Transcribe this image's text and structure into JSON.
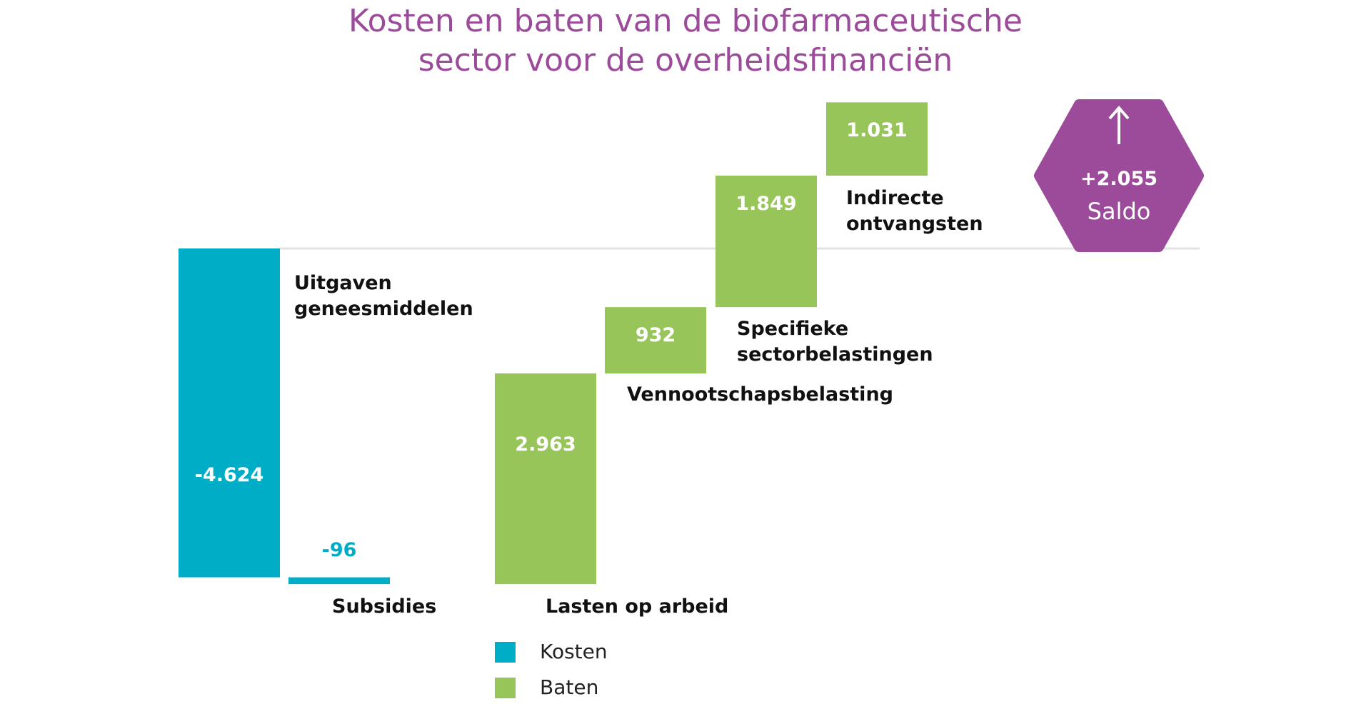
{
  "chart_data": {
    "type": "waterfall",
    "title": [
      "Kosten en baten van de biofarmaceutische",
      "sector voor de overheidsfinanciën"
    ],
    "categories": [
      "Uitgaven geneesmiddelen",
      "Subsidies",
      "Lasten op arbeid",
      "Vennootschapsbelasting",
      "Specifieke sectorbelastingen",
      "Indirecte ontvangsten"
    ],
    "values": [
      -4624,
      -96,
      2963,
      932,
      1849,
      1031
    ],
    "value_labels": [
      "-4.624",
      "-96",
      "2.963",
      "932",
      "1.849",
      "1.031"
    ],
    "legend": [
      {
        "name": "Kosten",
        "color": "#00adc6"
      },
      {
        "name": "Baten",
        "color": "#97c55a"
      }
    ],
    "total": {
      "label": "Saldo",
      "value": 2055,
      "value_label": "+2.055",
      "color": "#9c4a9a"
    }
  }
}
